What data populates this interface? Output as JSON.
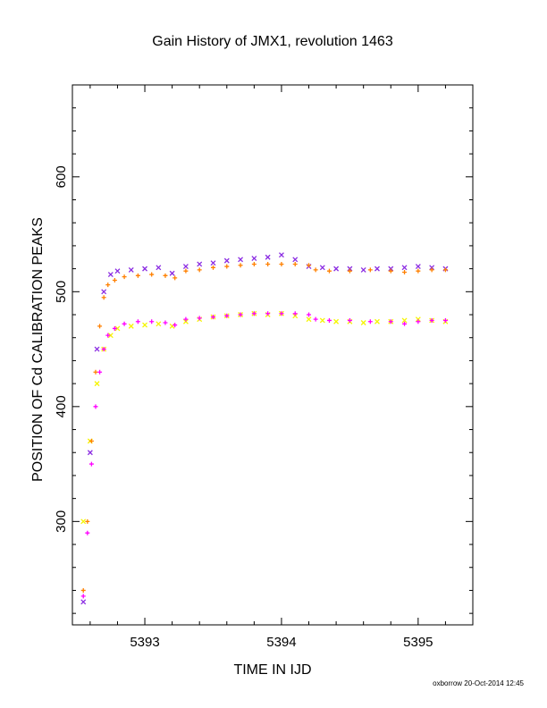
{
  "chart_data": {
    "type": "scatter",
    "title": "Gain History of JMX1, revolution 1463",
    "xlabel": "TIME IN IJD",
    "ylabel": "POSITION OF Cd CALIBRATION PEAKS",
    "xlim": [
      5392.47,
      5395.4
    ],
    "ylim": [
      210,
      680
    ],
    "xticks": [
      "5393",
      "5394",
      "5395"
    ],
    "yticks": [
      "300",
      "400",
      "500",
      "600"
    ],
    "grid": false,
    "series": [
      {
        "color": "#8a2be2",
        "marker": "x",
        "x": [
          5392.55,
          5392.6,
          5392.65,
          5392.7,
          5392.75,
          5392.8,
          5392.9,
          5393.0,
          5393.1,
          5393.2,
          5393.3,
          5393.4,
          5393.5,
          5393.6,
          5393.7,
          5393.8,
          5393.9,
          5394.0,
          5394.1,
          5394.2,
          5394.3,
          5394.4,
          5394.5,
          5394.6,
          5394.7,
          5394.8,
          5394.9,
          5395.0,
          5395.1,
          5395.2
        ],
        "y": [
          230,
          360,
          450,
          500,
          515,
          518,
          519,
          520,
          521,
          516,
          522,
          524,
          525,
          527,
          528,
          529,
          530,
          532,
          528,
          522,
          521,
          520,
          520,
          519,
          520,
          520,
          521,
          522,
          521,
          520
        ]
      },
      {
        "color": "#f5f500",
        "marker": "x",
        "x": [
          5392.55,
          5392.6,
          5392.65,
          5392.7,
          5392.75,
          5392.8,
          5392.9,
          5393.0,
          5393.1,
          5393.2,
          5393.3,
          5393.4,
          5393.5,
          5393.6,
          5393.7,
          5393.8,
          5393.9,
          5394.0,
          5394.1,
          5394.2,
          5394.3,
          5394.4,
          5394.5,
          5394.6,
          5394.7,
          5394.8,
          5394.9,
          5395.0,
          5395.1,
          5395.2
        ],
        "y": [
          300,
          370,
          420,
          450,
          462,
          468,
          470,
          471,
          472,
          470,
          474,
          476,
          478,
          479,
          480,
          481,
          480,
          481,
          479,
          476,
          475,
          474,
          474,
          473,
          474,
          474,
          475,
          476,
          475,
          474
        ]
      },
      {
        "color": "#ff8000",
        "marker": "+",
        "x": [
          5392.55,
          5392.58,
          5392.61,
          5392.64,
          5392.67,
          5392.7,
          5392.73,
          5392.78,
          5392.85,
          5392.95,
          5393.05,
          5393.15,
          5393.22,
          5393.3,
          5393.4,
          5393.5,
          5393.6,
          5393.7,
          5393.8,
          5393.9,
          5394.0,
          5394.1,
          5394.2,
          5394.25,
          5394.35,
          5394.5,
          5394.65,
          5394.8,
          5394.9,
          5395.0,
          5395.1,
          5395.2
        ],
        "y": [
          240,
          300,
          370,
          430,
          470,
          495,
          506,
          510,
          513,
          514,
          515,
          514,
          512,
          518,
          519,
          521,
          522,
          523,
          524,
          524,
          524,
          524,
          523,
          519,
          518,
          518,
          519,
          518,
          517,
          518,
          519,
          519
        ]
      },
      {
        "color": "#ff00ff",
        "marker": "+",
        "x": [
          5392.55,
          5392.58,
          5392.61,
          5392.64,
          5392.67,
          5392.7,
          5392.73,
          5392.78,
          5392.85,
          5392.95,
          5393.05,
          5393.15,
          5393.22,
          5393.3,
          5393.4,
          5393.5,
          5393.6,
          5393.7,
          5393.8,
          5393.9,
          5394.0,
          5394.1,
          5394.2,
          5394.25,
          5394.35,
          5394.5,
          5394.65,
          5394.8,
          5394.9,
          5395.0,
          5395.1,
          5395.2
        ],
        "y": [
          235,
          290,
          350,
          400,
          430,
          450,
          462,
          468,
          472,
          474,
          474,
          473,
          471,
          476,
          477,
          478,
          479,
          480,
          481,
          481,
          481,
          481,
          480,
          476,
          475,
          475,
          474,
          474,
          472,
          474,
          475,
          475
        ]
      }
    ]
  },
  "footer": "oxborrow 20-Oct-2014 12:45"
}
